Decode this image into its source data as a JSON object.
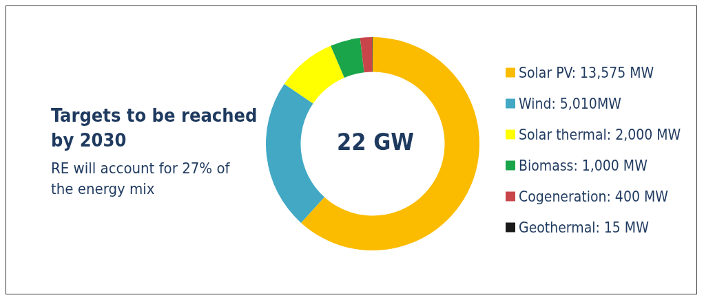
{
  "chart_data": {
    "type": "donut",
    "title": "Targets to be reached by 2030",
    "subtitle": "RE will account for 27% of the energy mix",
    "categories": [
      "Solar PV: 13,575 MW",
      "Wind: 5,010MW",
      "Solar thermal: 2,000 MW",
      "Biomass: 1,000 MW",
      "Cogeneration: 400 MW",
      "Geothermal: 15 MW"
    ],
    "values": [
      13575,
      5010,
      2000,
      1000,
      400,
      15
    ],
    "colors": [
      "#fbbc00",
      "#42a8c4",
      "#ffff00",
      "#1aa54a",
      "#c8454a",
      "#1a1a1a"
    ],
    "annotations": [
      "22 GW"
    ],
    "legend": "right"
  }
}
